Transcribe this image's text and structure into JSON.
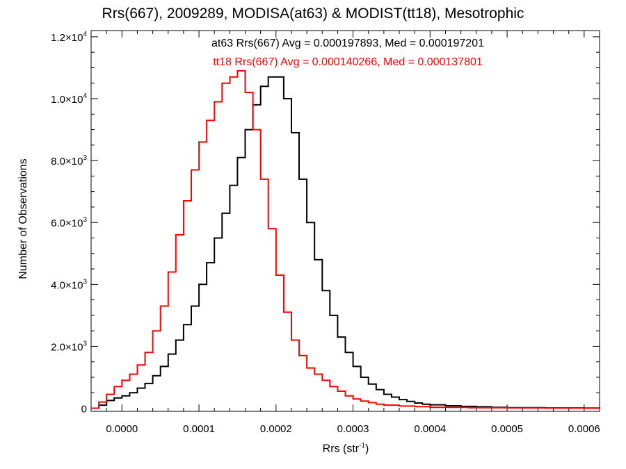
{
  "chart_data": {
    "type": "line",
    "step": true,
    "title": "Rrs(667), 2009289, MODISA(at63) & MODIST(tt18), Mesotrophic",
    "xlabel": "Rrs (str",
    "xlabel_sup": "-1",
    "xlabel_end": ")",
    "ylabel": "Number of Observations",
    "xlim": [
      -4e-05,
      0.00062
    ],
    "ylim": [
      -100,
      12200
    ],
    "grid": false,
    "annotations": [
      {
        "text": "at63 Rrs(667) Avg = 0.000197893, Med = 0.000197201",
        "color": "#000000"
      },
      {
        "text": "tt18 Rrs(667) Avg = 0.000140266, Med = 0.000137801",
        "color": "#ff0000"
      }
    ],
    "x_ticks": [
      "0.0000",
      "0.0001",
      "0.0002",
      "0.0003",
      "0.0004",
      "0.0005",
      "0.0006"
    ],
    "x_tick_values": [
      0.0,
      0.0001,
      0.0002,
      0.0003,
      0.0004,
      0.0005,
      0.0006
    ],
    "y_ticks": [
      {
        "value": 0,
        "mant": "0",
        "exp": ""
      },
      {
        "value": 2000,
        "mant": "2.0×10",
        "exp": "3"
      },
      {
        "value": 4000,
        "mant": "4.0×10",
        "exp": "3"
      },
      {
        "value": 6000,
        "mant": "6.0×10",
        "exp": "3"
      },
      {
        "value": 8000,
        "mant": "8.0×10",
        "exp": "3"
      },
      {
        "value": 10000,
        "mant": "1.0×10",
        "exp": "4"
      },
      {
        "value": 12000,
        "mant": "1.2×10",
        "exp": "4"
      }
    ],
    "series": [
      {
        "name": "at63",
        "color": "#000000",
        "x": [
          -4e-05,
          -3e-05,
          -2e-05,
          -1e-05,
          0.0,
          1e-05,
          2e-05,
          3e-05,
          4e-05,
          5e-05,
          6e-05,
          7e-05,
          8e-05,
          9e-05,
          0.0001,
          0.00011,
          0.00012,
          0.00013,
          0.00014,
          0.00015,
          0.00016,
          0.00017,
          0.00018,
          0.00019,
          0.0002,
          0.00021,
          0.00022,
          0.00023,
          0.00024,
          0.00025,
          0.00026,
          0.00027,
          0.00028,
          0.00029,
          0.0003,
          0.00031,
          0.00032,
          0.00033,
          0.00034,
          0.00035,
          0.00036,
          0.00037,
          0.00038,
          0.00039,
          0.0004,
          0.00042,
          0.00044,
          0.00046,
          0.00048,
          0.0005,
          0.00055,
          0.0006,
          0.00062
        ],
        "y": [
          0,
          100,
          250,
          330,
          400,
          500,
          650,
          800,
          1050,
          1350,
          1750,
          2200,
          2700,
          3300,
          4000,
          4700,
          5500,
          6300,
          7200,
          8100,
          9000,
          9800,
          10400,
          10700,
          10700,
          10000,
          8900,
          7400,
          6000,
          4800,
          3800,
          3000,
          2300,
          1800,
          1350,
          1000,
          780,
          600,
          450,
          360,
          280,
          220,
          170,
          130,
          110,
          80,
          60,
          45,
          30,
          20,
          10,
          5,
          0
        ]
      },
      {
        "name": "tt18",
        "color": "#ff0000",
        "x": [
          -4e-05,
          -3e-05,
          -2e-05,
          -1e-05,
          0.0,
          1e-05,
          2e-05,
          3e-05,
          4e-05,
          5e-05,
          6e-05,
          7e-05,
          8e-05,
          9e-05,
          0.0001,
          0.00011,
          0.00012,
          0.00013,
          0.00014,
          0.00015,
          0.00016,
          0.00017,
          0.00018,
          0.00019,
          0.0002,
          0.00021,
          0.00022,
          0.00023,
          0.00024,
          0.00025,
          0.00026,
          0.00027,
          0.00028,
          0.00029,
          0.0003,
          0.00031,
          0.00032,
          0.00033,
          0.00034,
          0.00036,
          0.00038,
          0.0004,
          0.00045,
          0.0005,
          0.00055,
          0.0006,
          0.00062
        ],
        "y": [
          0,
          200,
          450,
          700,
          900,
          1100,
          1400,
          1800,
          2500,
          3300,
          4400,
          5600,
          6700,
          7700,
          8600,
          9300,
          9900,
          10500,
          10700,
          10900,
          10200,
          9000,
          7400,
          5800,
          4300,
          3100,
          2200,
          1700,
          1300,
          1100,
          900,
          700,
          550,
          400,
          300,
          230,
          180,
          130,
          100,
          70,
          50,
          30,
          15,
          10,
          5,
          0,
          0
        ]
      }
    ]
  }
}
